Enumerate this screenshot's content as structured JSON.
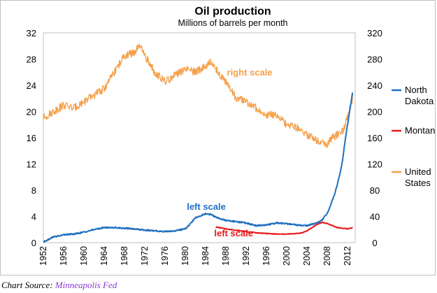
{
  "chart_data": {
    "type": "line",
    "title": "Oil production",
    "subtitle": "Millions of barrels per month",
    "x_ticks": [
      "1952",
      "1956",
      "1960",
      "1964",
      "1968",
      "1972",
      "1976",
      "1980",
      "1984",
      "1988",
      "1992",
      "1996",
      "2000",
      "2004",
      "2008",
      "2012"
    ],
    "left_axis": {
      "ticks": [
        "0",
        "4",
        "8",
        "12",
        "16",
        "20",
        "24",
        "28",
        "32"
      ],
      "ylim": [
        0,
        32
      ]
    },
    "right_axis": {
      "ticks": [
        "0",
        "40",
        "80",
        "120",
        "160",
        "200",
        "240",
        "280",
        "320"
      ],
      "ylim": [
        0,
        320
      ]
    },
    "grid": false,
    "legend_position": "right",
    "series": [
      {
        "name": "North Dakota",
        "axis": "left",
        "color": "#1f6fc0",
        "x": [
          1952,
          1953,
          1954,
          1955,
          1956,
          1958,
          1960,
          1962,
          1964,
          1966,
          1968,
          1970,
          1972,
          1974,
          1976,
          1978,
          1980,
          1981,
          1982,
          1983,
          1984,
          1985,
          1986,
          1987,
          1988,
          1990,
          1992,
          1994,
          1996,
          1998,
          2000,
          2002,
          2004,
          2005,
          2006,
          2007,
          2008,
          2008.5,
          2009,
          2009.5,
          2010,
          2010.5,
          2011,
          2011.5,
          2012,
          2012.5,
          2013
        ],
        "y": [
          0.1,
          0.5,
          0.9,
          1.0,
          1.2,
          1.3,
          1.6,
          2.0,
          2.3,
          2.3,
          2.2,
          2.1,
          1.9,
          1.8,
          1.7,
          1.8,
          2.1,
          2.9,
          3.8,
          4.1,
          4.4,
          4.3,
          3.9,
          3.6,
          3.4,
          3.2,
          3.0,
          2.6,
          2.7,
          3.0,
          2.9,
          2.7,
          2.6,
          2.8,
          3.0,
          3.5,
          4.5,
          5.4,
          6.5,
          7.5,
          9.0,
          10.5,
          12.5,
          15.5,
          18.0,
          20.5,
          23.0
        ]
      },
      {
        "name": "Montana",
        "axis": "left",
        "color": "#e8191a",
        "x": [
          1986,
          1988,
          1990,
          1992,
          1994,
          1996,
          1998,
          2000,
          2002,
          2003,
          2004,
          2005,
          2006,
          2007,
          2008,
          2009,
          2010,
          2011,
          2012,
          2013
        ],
        "y": [
          2.4,
          2.1,
          1.9,
          1.7,
          1.5,
          1.4,
          1.3,
          1.3,
          1.4,
          1.5,
          1.8,
          2.3,
          2.8,
          3.1,
          2.9,
          2.6,
          2.3,
          2.2,
          2.1,
          2.3
        ]
      },
      {
        "name": "United States",
        "axis": "right",
        "color": "#f5a04a",
        "x": [
          1952,
          1954,
          1956,
          1958,
          1960,
          1962,
          1964,
          1966,
          1968,
          1970,
          1971,
          1972,
          1974,
          1976,
          1978,
          1980,
          1982,
          1984,
          1985,
          1986,
          1988,
          1990,
          1992,
          1994,
          1996,
          1998,
          2000,
          2002,
          2004,
          2006,
          2008,
          2009,
          2010,
          2011,
          2012,
          2013
        ],
        "y": [
          190,
          200,
          210,
          205,
          215,
          225,
          235,
          260,
          285,
          290,
          300,
          285,
          260,
          245,
          255,
          265,
          260,
          270,
          275,
          265,
          245,
          220,
          215,
          205,
          195,
          195,
          180,
          175,
          165,
          155,
          150,
          160,
          165,
          170,
          190,
          220
        ]
      }
    ],
    "annotations": [
      {
        "text": "right scale",
        "color": "#f5a04a",
        "x": 1988.2,
        "y": 255,
        "axis": "right"
      },
      {
        "text": "left scale",
        "color": "#1f6fc0",
        "x": 1980.3,
        "y": 5.0,
        "axis": "left"
      },
      {
        "text": "left scale",
        "color": "#e8191a",
        "x": 1985.7,
        "y": 0.95,
        "axis": "left"
      }
    ],
    "legend": [
      {
        "lines": [
          "North",
          "Dakota"
        ],
        "color": "#1f6fc0",
        "series": "North Dakota"
      },
      {
        "lines": [
          "Montan"
        ],
        "color": "#e8191a",
        "series": "Montana"
      },
      {
        "lines": [
          "United",
          "States"
        ],
        "color": "#f5a04a",
        "series": "United States"
      }
    ]
  },
  "source": {
    "label": "Chart Source:",
    "link_text": "Minneapolis Fed"
  }
}
